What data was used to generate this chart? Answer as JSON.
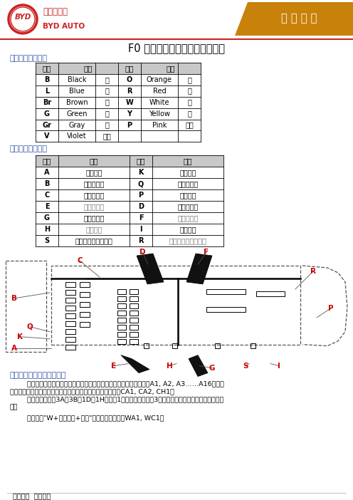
{
  "title": "F0 线束、连接器、搭铁命名规则",
  "header_tag": "电 气 电 子",
  "header_bg": "#C8820A",
  "section1_title": "一、线束颜色代号",
  "color_table_data": [
    [
      "B",
      "Black",
      "黑",
      "O",
      "Orange",
      "橙"
    ],
    [
      "L",
      "Blue",
      "蓝",
      "R",
      "Red",
      "红"
    ],
    [
      "Br",
      "Brown",
      "棕",
      "W",
      "White",
      "白"
    ],
    [
      "G",
      "Green",
      "绿",
      "Y",
      "Yellow",
      "黄"
    ],
    [
      "Gr",
      "Gray",
      "灰",
      "P",
      "Pink",
      "粉红"
    ],
    [
      "V",
      "Violet",
      "紫色",
      "",
      "",
      ""
    ]
  ],
  "section2_title": "二、线束名称代号",
  "wire_table_data": [
    [
      "A",
      "前舱线束",
      "K",
      "负极线束"
    ],
    [
      "B",
      "发动机线束",
      "Q",
      "配电盒小线"
    ],
    [
      "C",
      "仪表板线束",
      "P",
      "背门线束"
    ],
    [
      "E",
      "左前门线束",
      "D",
      "右前门线束"
    ],
    [
      "G",
      "左后门线束",
      "F",
      "右后门线束"
    ],
    [
      "H",
      "地板线束",
      "I",
      "顶棚线束"
    ],
    [
      "S",
      "左后轮速传感器线束",
      "R",
      "右后轮速传感器线束"
    ]
  ],
  "section3_title": "三、连接器、搭铁命名规则",
  "section3_para1": "        对于连接器，按照阿拉伯数字对每条线束上的连接器进行排序。例如A1, A2, A3……A16。对互\n连连接器采取用不同线束字母代码组合后加数字的形式。例如CA1, CA2, CH1。\n        在特殊连接器如3A、3B、1D、1H当中，1表示前舱配电盒，3表示仪表配电盒，后边的字母表示序\n号。",
  "section3_para2": "        搭铁使用\"W+线束代码+数字\"的形式表示，例如WA1, WC1。",
  "footer": "内部资料  严禁外传",
  "red_label_color": "#CC0000",
  "blue_color": "#3355AA",
  "gray_color": "#777777"
}
